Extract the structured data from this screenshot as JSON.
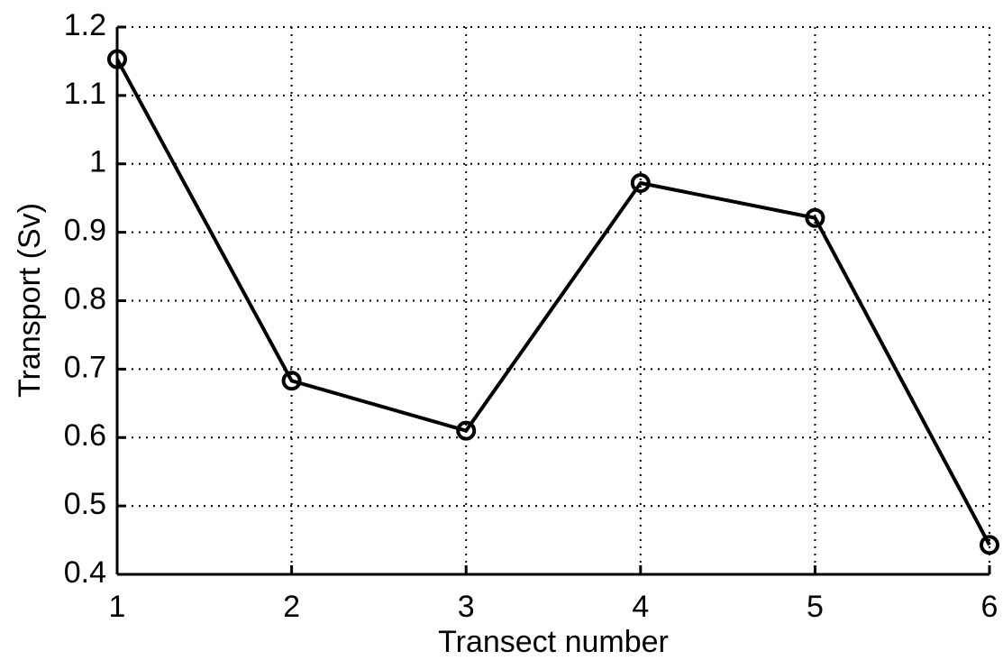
{
  "chart_data": {
    "type": "line",
    "xlabel": "Transect number",
    "ylabel": "Transport (Sv)",
    "x": [
      1,
      2,
      3,
      4,
      5,
      6
    ],
    "series": [
      {
        "color": "#000000",
        "values": [
          1.153,
          0.683,
          0.61,
          0.972,
          0.921,
          0.443
        ]
      }
    ],
    "xlim": [
      1,
      6
    ],
    "xticks": [
      1,
      2,
      3,
      4,
      5,
      6
    ],
    "ylim": [
      0.4,
      1.2
    ],
    "yticks": [
      0.4,
      0.5,
      0.6,
      0.7,
      0.8,
      0.9,
      1,
      1.1,
      1.2
    ],
    "grid": true,
    "markers": "circle"
  }
}
